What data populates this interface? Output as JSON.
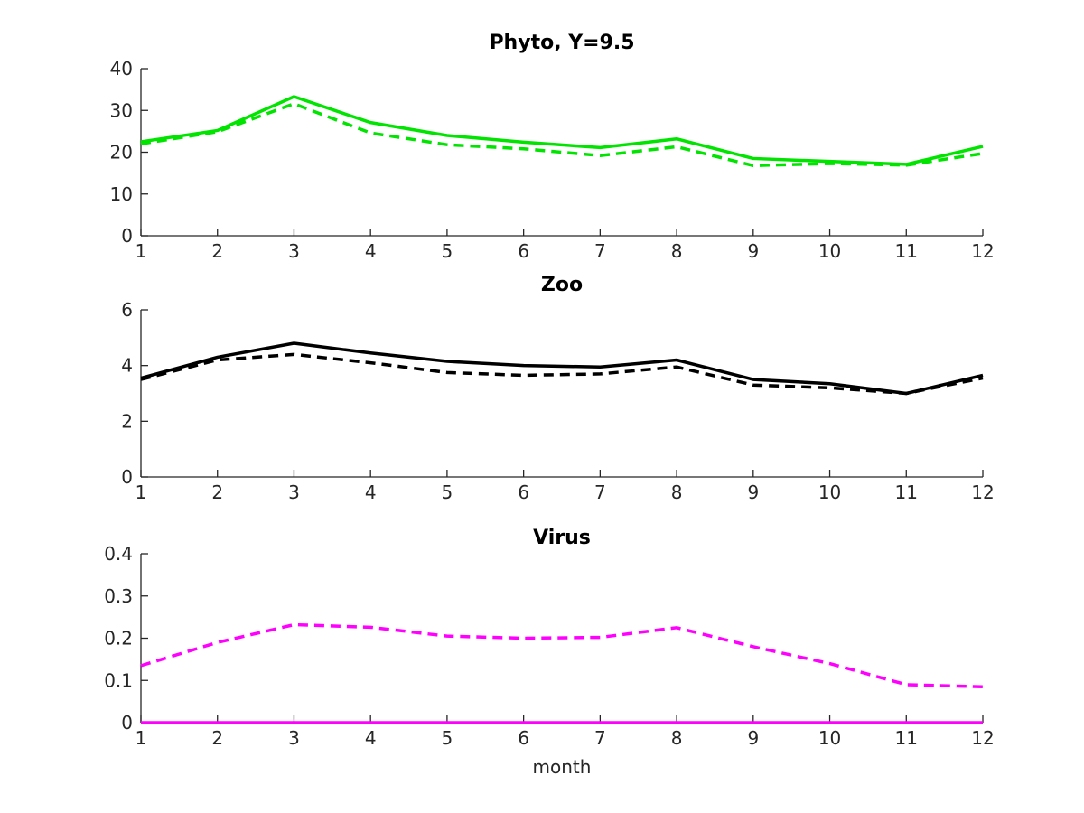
{
  "figure": {
    "background": "#ffffff",
    "axis_color": "#262626",
    "tick_label_color": "#262626",
    "title_color": "#000000"
  },
  "chart_data": [
    {
      "type": "line",
      "title": "Phyto, Y=9.5",
      "xlabel": "",
      "ylabel": "",
      "x": [
        1,
        2,
        3,
        4,
        5,
        6,
        7,
        8,
        9,
        10,
        11,
        12
      ],
      "xlim": [
        1,
        12
      ],
      "ylim": [
        0,
        40
      ],
      "xticks": [
        1,
        2,
        3,
        4,
        5,
        6,
        7,
        8,
        9,
        10,
        11,
        12
      ],
      "xtick_labels": [
        "1",
        "2",
        "3",
        "4",
        "5",
        "6",
        "7",
        "8",
        "9",
        "10",
        "11",
        "12"
      ],
      "yticks": [
        0,
        10,
        20,
        30,
        40
      ],
      "ytick_labels": [
        "0",
        "10",
        "20",
        "30",
        "40"
      ],
      "grid": false,
      "legend": null,
      "series": [
        {
          "name": "phyto-dashed",
          "color": "#00e400",
          "style": "dashed",
          "values": [
            22.0,
            24.9,
            31.6,
            24.6,
            21.8,
            20.8,
            19.2,
            21.3,
            16.8,
            17.3,
            16.9,
            19.7
          ]
        },
        {
          "name": "phyto-solid",
          "color": "#00e400",
          "style": "solid",
          "values": [
            22.5,
            25.2,
            33.3,
            27.1,
            24.0,
            22.4,
            21.1,
            23.2,
            18.5,
            17.8,
            17.1,
            21.4
          ]
        }
      ]
    },
    {
      "type": "line",
      "title": "Zoo",
      "xlabel": "",
      "ylabel": "",
      "x": [
        1,
        2,
        3,
        4,
        5,
        6,
        7,
        8,
        9,
        10,
        11,
        12
      ],
      "xlim": [
        1,
        12
      ],
      "ylim": [
        0,
        6
      ],
      "xticks": [
        1,
        2,
        3,
        4,
        5,
        6,
        7,
        8,
        9,
        10,
        11,
        12
      ],
      "xtick_labels": [
        "1",
        "2",
        "3",
        "4",
        "5",
        "6",
        "7",
        "8",
        "9",
        "10",
        "11",
        "12"
      ],
      "yticks": [
        0,
        2,
        4,
        6
      ],
      "ytick_labels": [
        "0",
        "2",
        "4",
        "6"
      ],
      "grid": false,
      "legend": null,
      "series": [
        {
          "name": "zoo-dashed",
          "color": "#000000",
          "style": "dashed",
          "values": [
            3.5,
            4.2,
            4.4,
            4.1,
            3.75,
            3.65,
            3.7,
            3.95,
            3.3,
            3.2,
            3.0,
            3.55
          ]
        },
        {
          "name": "zoo-solid",
          "color": "#000000",
          "style": "solid",
          "values": [
            3.55,
            4.3,
            4.8,
            4.45,
            4.15,
            4.0,
            3.95,
            4.2,
            3.5,
            3.35,
            3.0,
            3.65
          ]
        }
      ]
    },
    {
      "type": "line",
      "title": "Virus",
      "xlabel": "month",
      "ylabel": "",
      "x": [
        1,
        2,
        3,
        4,
        5,
        6,
        7,
        8,
        9,
        10,
        11,
        12
      ],
      "xlim": [
        1,
        12
      ],
      "ylim": [
        0,
        0.4
      ],
      "xticks": [
        1,
        2,
        3,
        4,
        5,
        6,
        7,
        8,
        9,
        10,
        11,
        12
      ],
      "xtick_labels": [
        "1",
        "2",
        "3",
        "4",
        "5",
        "6",
        "7",
        "8",
        "9",
        "10",
        "11",
        "12"
      ],
      "yticks": [
        0,
        0.1,
        0.2,
        0.3,
        0.4
      ],
      "ytick_labels": [
        "0",
        "0.1",
        "0.2",
        "0.3",
        "0.4"
      ],
      "grid": false,
      "legend": null,
      "series": [
        {
          "name": "virus-dashed",
          "color": "#ff00ff",
          "style": "dashed",
          "values": [
            0.135,
            0.19,
            0.232,
            0.226,
            0.205,
            0.2,
            0.202,
            0.225,
            0.18,
            0.14,
            0.09,
            0.085
          ]
        },
        {
          "name": "virus-solid",
          "color": "#ff00ff",
          "style": "solid",
          "values": [
            0,
            0,
            0,
            0,
            0,
            0,
            0,
            0,
            0,
            0,
            0,
            0
          ]
        }
      ]
    }
  ]
}
